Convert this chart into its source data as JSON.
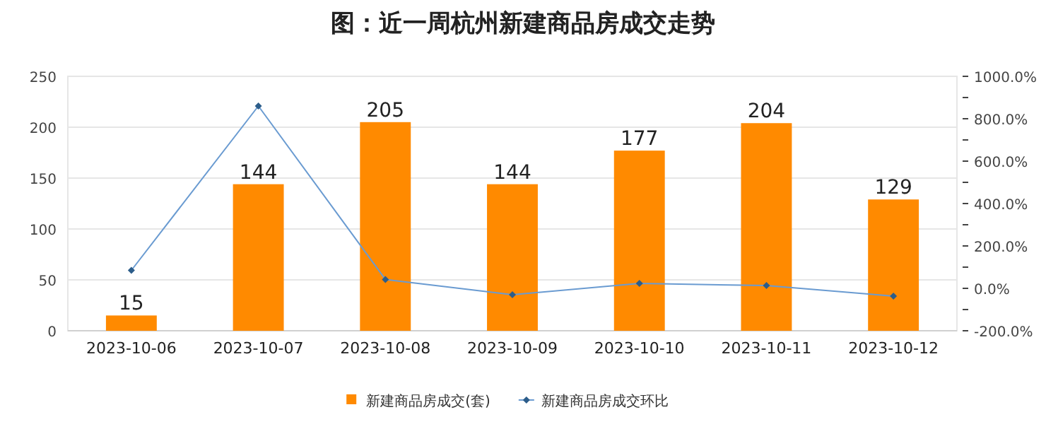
{
  "chart_data": {
    "type": "bar",
    "title": "图：近一周杭州新建商品房成交走势",
    "categories": [
      "2023-10-06",
      "2023-10-07",
      "2023-10-08",
      "2023-10-09",
      "2023-10-10",
      "2023-10-11",
      "2023-10-12"
    ],
    "series": [
      {
        "name": "新建商品房成交(套)",
        "color": "#ff8a00",
        "values": [
          15,
          144,
          205,
          144,
          177,
          204,
          129
        ],
        "value_labels": [
          "15",
          "144",
          "205",
          "144",
          "177",
          "204",
          "129"
        ]
      },
      {
        "name": "新建商品房成交环比",
        "type": "line",
        "axis": "y2",
        "color": "#6a9bd1",
        "marker": "diamond",
        "values": [
          85,
          860,
          42,
          -30,
          23,
          13,
          -37
        ]
      }
    ],
    "ylim": [
      0,
      250
    ],
    "yticks": [
      0,
      50,
      100,
      150,
      200,
      250
    ],
    "y2lim": [
      -200,
      1000
    ],
    "y2ticks": [
      {
        "value": -200,
        "label": "-200.0%"
      },
      {
        "value": -100,
        "label": null
      },
      {
        "value": 0,
        "label": "0.0%"
      },
      {
        "value": 100,
        "label": null
      },
      {
        "value": 200,
        "label": "200.0%"
      },
      {
        "value": 300,
        "label": null
      },
      {
        "value": 400,
        "label": "400.0%"
      },
      {
        "value": 500,
        "label": null
      },
      {
        "value": 600,
        "label": "600.0%"
      },
      {
        "value": 700,
        "label": null
      },
      {
        "value": 800,
        "label": "800.0%"
      },
      {
        "value": 900,
        "label": null
      },
      {
        "value": 1000,
        "label": "1000.0%"
      }
    ],
    "grid": "y",
    "legend": "bottom"
  }
}
